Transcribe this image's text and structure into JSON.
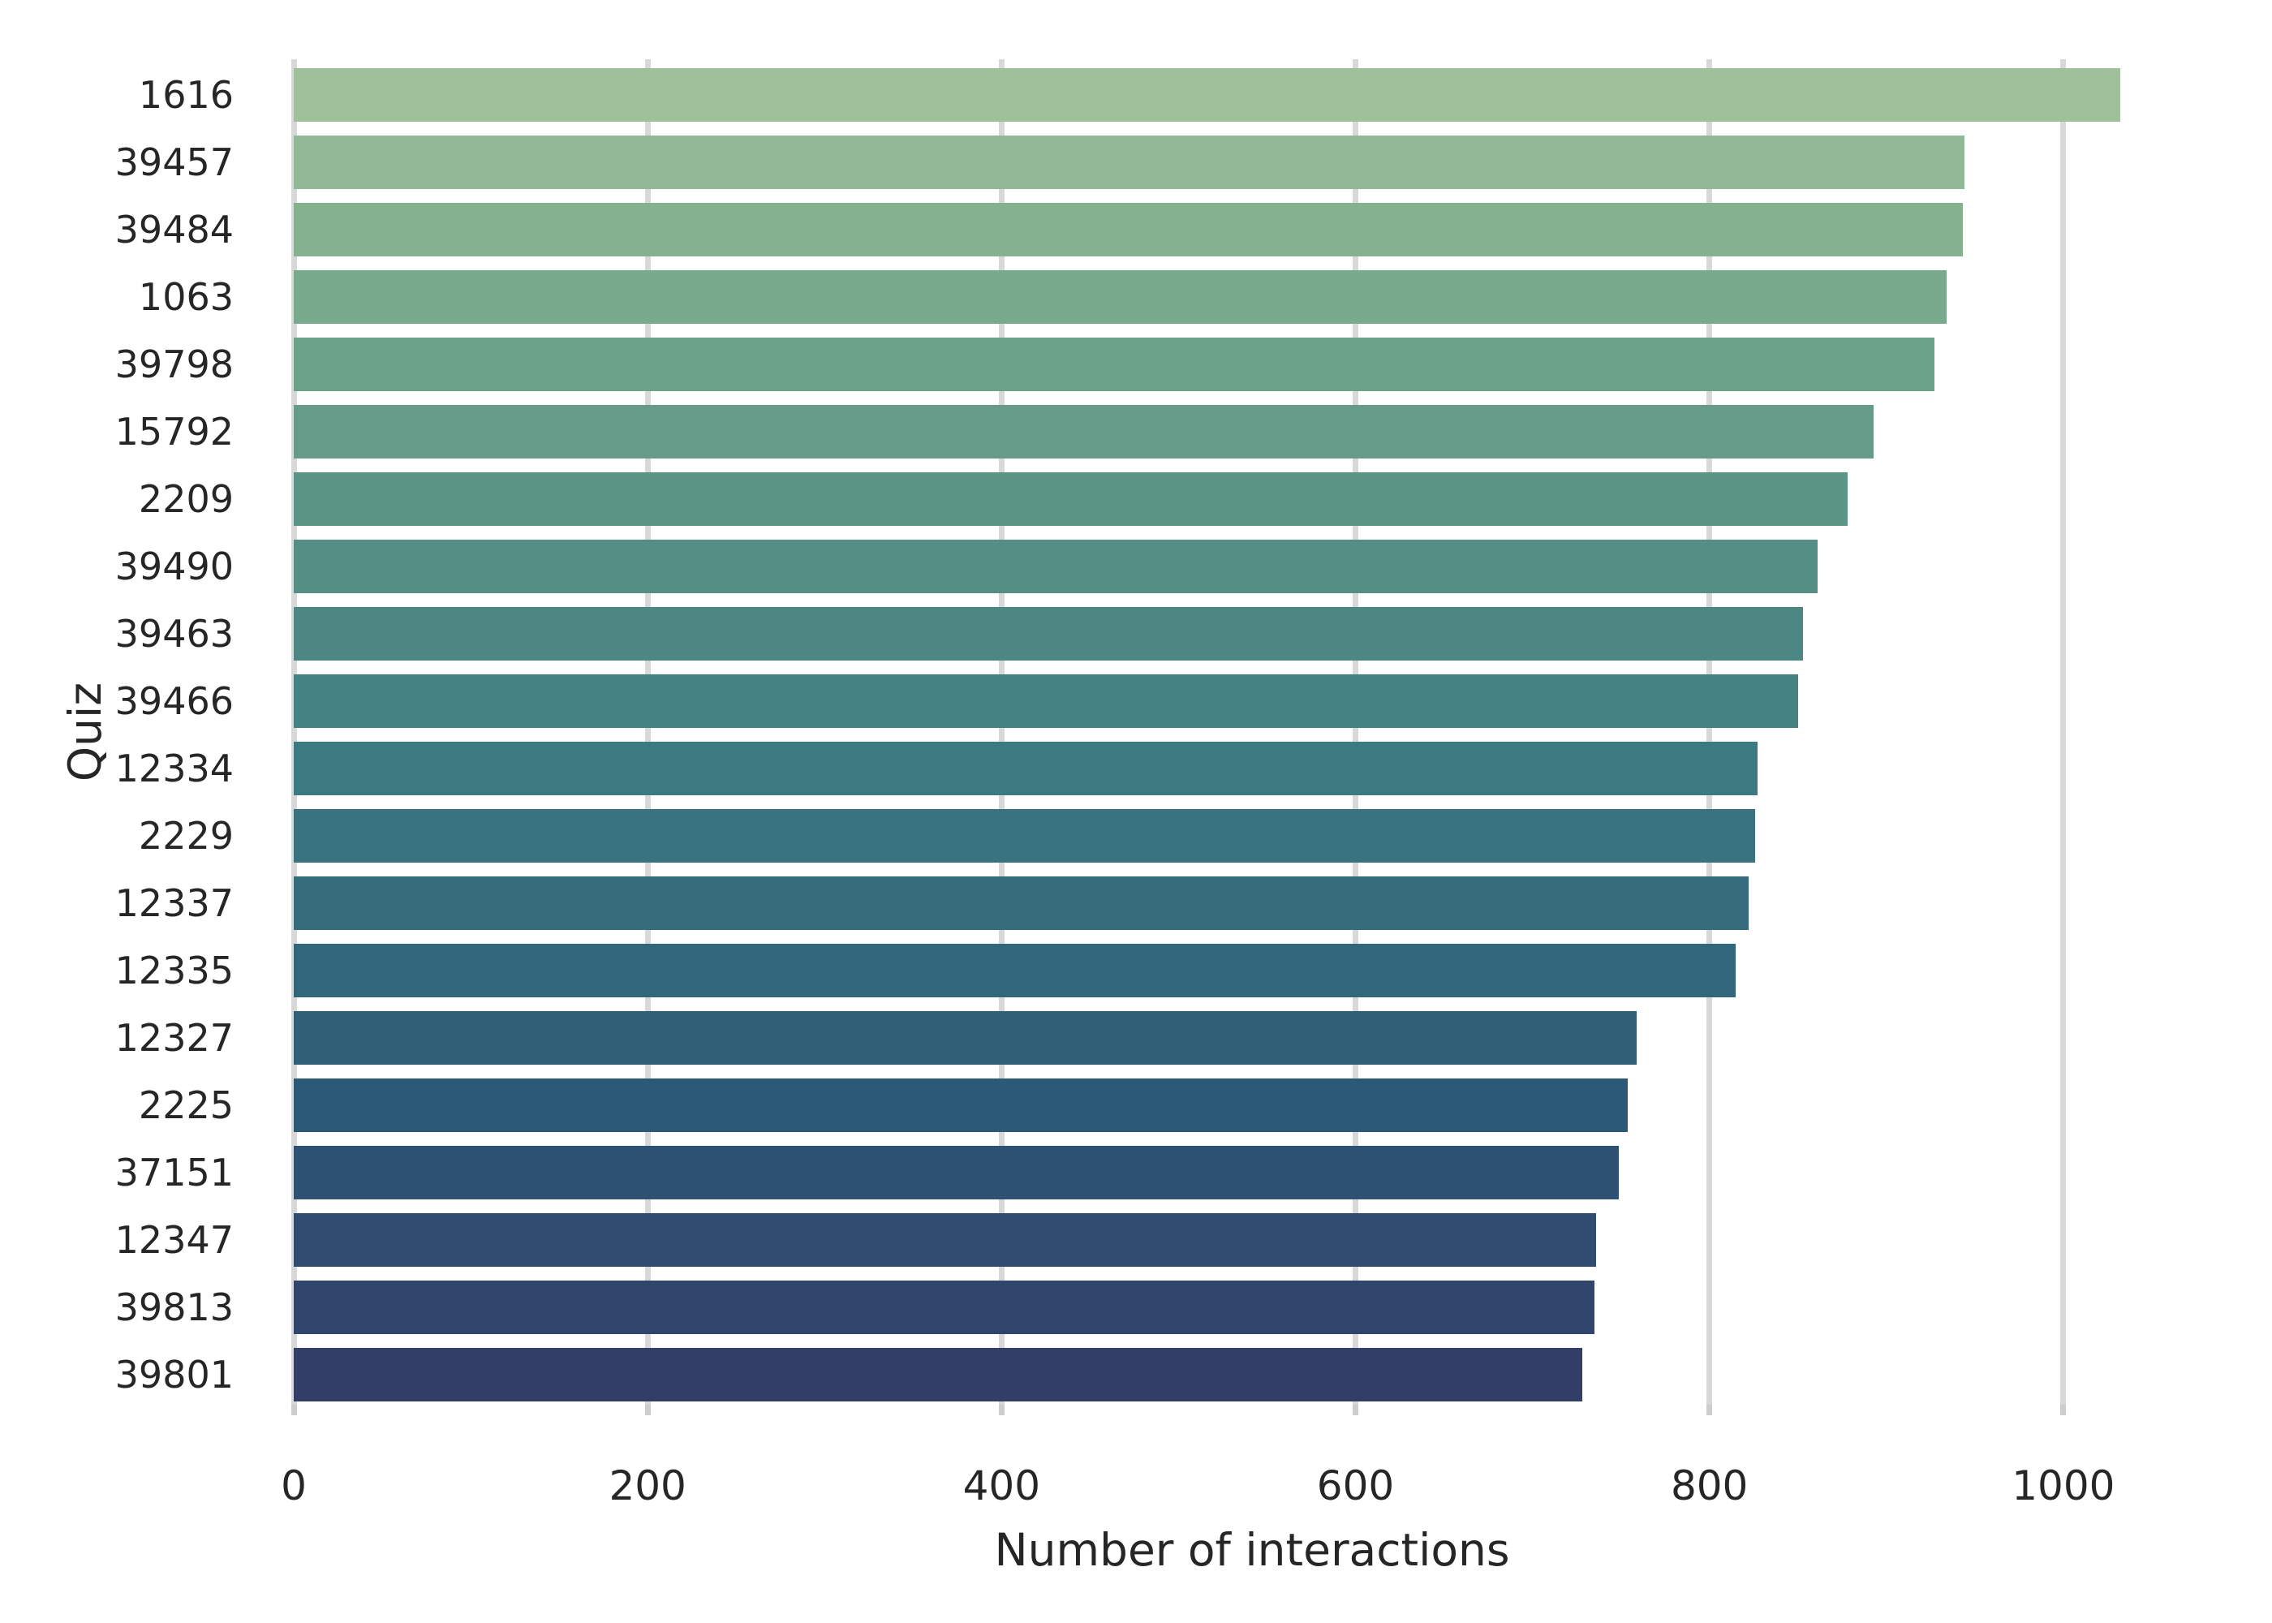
{
  "chart_data": {
    "type": "bar",
    "orientation": "horizontal",
    "title": "",
    "xlabel": "Number of interactions",
    "ylabel": "Quiz",
    "categories": [
      "1616",
      "39457",
      "39484",
      "1063",
      "39798",
      "15792",
      "2209",
      "39490",
      "39463",
      "39466",
      "12334",
      "2229",
      "12337",
      "12335",
      "12327",
      "2225",
      "37151",
      "12347",
      "39813",
      "39801"
    ],
    "values": [
      1032,
      944,
      943,
      934,
      927,
      893,
      878,
      861,
      853,
      850,
      827,
      826,
      822,
      815,
      759,
      754,
      749,
      736,
      735,
      728
    ],
    "bar_colors": [
      "#9fc09a",
      "#92b996",
      "#86b191",
      "#79aa8d",
      "#6da28a",
      "#659b88",
      "#5c9586",
      "#548e85",
      "#4c8784",
      "#438182",
      "#3b7a81",
      "#38737f",
      "#356d7d",
      "#32667a",
      "#2f6078",
      "#2c5976",
      "#2e5273",
      "#304c6f",
      "#31456c",
      "#333e68"
    ],
    "x_ticks": [
      0,
      200,
      400,
      600,
      800,
      1000
    ],
    "xlim": [
      0,
      1084
    ],
    "grid": true,
    "legend": "none"
  },
  "style": {
    "background": "#ffffff",
    "grid_color": "#d8d8d8",
    "tick_mark_color": "#cdcdcd",
    "text_color": "#262626"
  }
}
